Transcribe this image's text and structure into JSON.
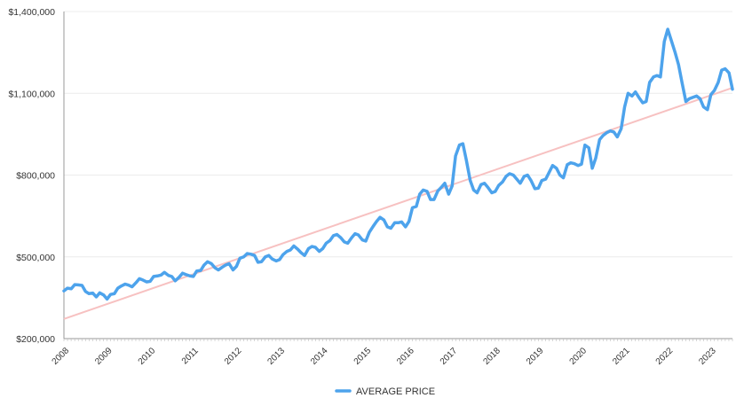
{
  "chart_data": {
    "type": "line",
    "y_ticks": [
      "$200,000",
      "$500,000",
      "$800,000",
      "$1,100,000",
      "$1,400,000"
    ],
    "y_tick_values": [
      200000,
      500000,
      800000,
      1100000,
      1400000
    ],
    "ylim": [
      200000,
      1400000
    ],
    "x_ticks": [
      "2008",
      "2009",
      "2010",
      "2011",
      "2012",
      "2013",
      "2014",
      "2015",
      "2016",
      "2017",
      "2018",
      "2019",
      "2020",
      "2021",
      "2022",
      "2023"
    ],
    "xlim": [
      2008,
      2023.5
    ],
    "grid": "horizontal",
    "legend_position": "bottom-center",
    "colors": {
      "series": "#4da3ec",
      "trend": "#f7c1c1",
      "grid": "#ececec",
      "axis": "#999999"
    },
    "series": [
      {
        "name": "AVERAGE PRICE",
        "x": [
          2008.0,
          2008.08,
          2008.17,
          2008.25,
          2008.33,
          2008.42,
          2008.5,
          2008.58,
          2008.67,
          2008.75,
          2008.83,
          2008.92,
          2009.0,
          2009.08,
          2009.17,
          2009.25,
          2009.33,
          2009.42,
          2009.5,
          2009.58,
          2009.67,
          2009.75,
          2009.83,
          2009.92,
          2010.0,
          2010.08,
          2010.17,
          2010.25,
          2010.33,
          2010.42,
          2010.5,
          2010.58,
          2010.67,
          2010.75,
          2010.83,
          2010.92,
          2011.0,
          2011.08,
          2011.17,
          2011.25,
          2011.33,
          2011.42,
          2011.5,
          2011.58,
          2011.67,
          2011.75,
          2011.83,
          2011.92,
          2012.0,
          2012.08,
          2012.17,
          2012.25,
          2012.33,
          2012.42,
          2012.5,
          2012.58,
          2012.67,
          2012.75,
          2012.83,
          2012.92,
          2013.0,
          2013.08,
          2013.17,
          2013.25,
          2013.33,
          2013.42,
          2013.5,
          2013.58,
          2013.67,
          2013.75,
          2013.83,
          2013.92,
          2014.0,
          2014.08,
          2014.17,
          2014.25,
          2014.33,
          2014.42,
          2014.5,
          2014.58,
          2014.67,
          2014.75,
          2014.83,
          2014.92,
          2015.0,
          2015.08,
          2015.17,
          2015.25,
          2015.33,
          2015.42,
          2015.5,
          2015.58,
          2015.67,
          2015.75,
          2015.83,
          2015.92,
          2016.0,
          2016.08,
          2016.17,
          2016.25,
          2016.33,
          2016.42,
          2016.5,
          2016.58,
          2016.67,
          2016.75,
          2016.83,
          2016.92,
          2017.0,
          2017.08,
          2017.17,
          2017.25,
          2017.33,
          2017.42,
          2017.5,
          2017.58,
          2017.67,
          2017.75,
          2017.83,
          2017.92,
          2018.0,
          2018.08,
          2018.17,
          2018.25,
          2018.33,
          2018.42,
          2018.5,
          2018.58,
          2018.67,
          2018.75,
          2018.83,
          2018.92,
          2019.0,
          2019.08,
          2019.17,
          2019.25,
          2019.33,
          2019.42,
          2019.5,
          2019.58,
          2019.67,
          2019.75,
          2019.83,
          2019.92,
          2020.0,
          2020.08,
          2020.17,
          2020.25,
          2020.33,
          2020.42,
          2020.5,
          2020.58,
          2020.67,
          2020.75,
          2020.83,
          2020.92,
          2021.0,
          2021.08,
          2021.17,
          2021.25,
          2021.33,
          2021.42,
          2021.5,
          2021.58,
          2021.67,
          2021.75,
          2021.83,
          2021.92,
          2022.0,
          2022.08,
          2022.17,
          2022.25,
          2022.33,
          2022.42,
          2022.5,
          2022.58,
          2022.67,
          2022.75,
          2022.83,
          2022.92,
          2023.0,
          2023.08,
          2023.17,
          2023.25,
          2023.33,
          2023.42,
          2023.5
        ],
        "values": [
          375000,
          385000,
          383000,
          398000,
          397000,
          395000,
          373000,
          365000,
          367000,
          353000,
          368000,
          360000,
          345000,
          362000,
          365000,
          385000,
          393000,
          400000,
          396000,
          390000,
          405000,
          420000,
          415000,
          408000,
          410000,
          428000,
          430000,
          433000,
          443000,
          432000,
          428000,
          412000,
          425000,
          440000,
          435000,
          430000,
          428000,
          448000,
          450000,
          470000,
          482000,
          475000,
          460000,
          452000,
          462000,
          470000,
          475000,
          452000,
          465000,
          495000,
          500000,
          512000,
          510000,
          505000,
          480000,
          482000,
          500000,
          505000,
          492000,
          485000,
          490000,
          508000,
          520000,
          525000,
          540000,
          528000,
          515000,
          505000,
          530000,
          538000,
          535000,
          520000,
          530000,
          550000,
          560000,
          578000,
          582000,
          570000,
          555000,
          550000,
          570000,
          585000,
          580000,
          562000,
          558000,
          590000,
          612000,
          630000,
          645000,
          635000,
          610000,
          605000,
          625000,
          625000,
          628000,
          610000,
          630000,
          680000,
          685000,
          730000,
          745000,
          740000,
          710000,
          710000,
          742000,
          755000,
          770000,
          730000,
          760000,
          870000,
          910000,
          915000,
          855000,
          780000,
          745000,
          735000,
          765000,
          770000,
          755000,
          735000,
          740000,
          762000,
          775000,
          795000,
          805000,
          800000,
          785000,
          770000,
          795000,
          800000,
          780000,
          750000,
          752000,
          780000,
          785000,
          810000,
          835000,
          825000,
          800000,
          790000,
          838000,
          845000,
          842000,
          835000,
          840000,
          910000,
          900000,
          825000,
          862000,
          930000,
          945000,
          955000,
          962000,
          958000,
          940000,
          970000,
          1050000,
          1100000,
          1090000,
          1105000,
          1085000,
          1065000,
          1070000,
          1140000,
          1160000,
          1165000,
          1160000,
          1290000,
          1335000,
          1295000,
          1250000,
          1205000,
          1140000,
          1070000,
          1080000,
          1085000,
          1090000,
          1080000,
          1050000,
          1040000,
          1095000,
          1110000,
          1140000,
          1185000,
          1190000,
          1175000,
          1115000
        ]
      }
    ],
    "trendline": {
      "x": [
        2008.0,
        2023.5
      ],
      "values": [
        272000,
        1120000
      ]
    }
  }
}
